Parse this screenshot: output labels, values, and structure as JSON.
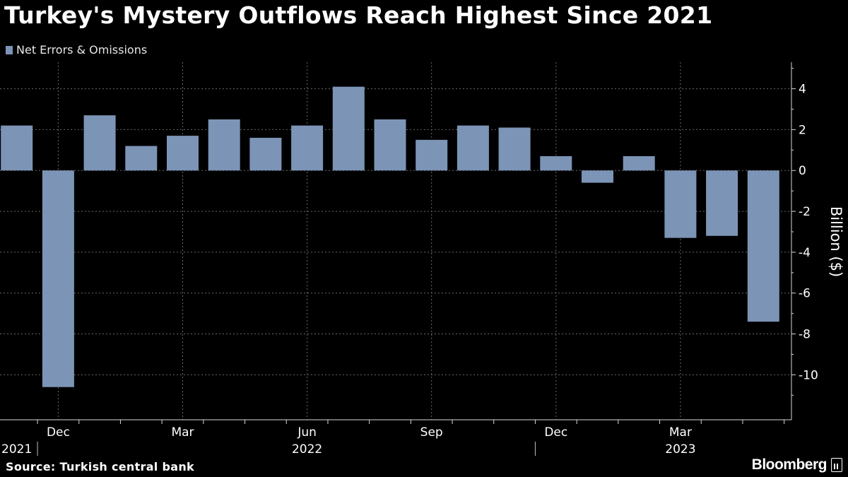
{
  "title": "Turkey's Mystery Outflows Reach Highest Since 2021",
  "legend": {
    "label": "Net Errors & Omissions",
    "swatch_color": "#7c94b6"
  },
  "footer": {
    "source": "Source: Turkish central bank",
    "brand": "Bloomberg"
  },
  "chart_data": {
    "type": "bar",
    "title": "Turkey's Mystery Outflows Reach Highest Since 2021",
    "ylabel": "Billion ($)",
    "xlabel": "",
    "ylim": [
      -12.2,
      5.3
    ],
    "yticks": [
      4,
      2,
      0,
      -2,
      -4,
      -6,
      -8,
      -10
    ],
    "y_axis_side": "right",
    "grid": true,
    "legend_position": "top-left",
    "bar_color": "#7c94b6",
    "series": [
      {
        "name": "Net Errors & Omissions",
        "categories": [
          "Nov 2021",
          "Dec 2021",
          "Jan 2022",
          "Feb 2022",
          "Mar 2022",
          "Apr 2022",
          "May 2022",
          "Jun 2022",
          "Jul 2022",
          "Aug 2022",
          "Sep 2022",
          "Oct 2022",
          "Nov 2022",
          "Dec 2022",
          "Jan 2023",
          "Feb 2023",
          "Mar 2023",
          "Apr 2023",
          "May 2023"
        ],
        "values": [
          2.2,
          -10.6,
          2.7,
          1.2,
          1.7,
          2.5,
          1.6,
          2.2,
          4.1,
          2.5,
          1.5,
          2.2,
          2.1,
          0.7,
          -0.6,
          0.7,
          -3.3,
          -3.2,
          -7.4
        ]
      }
    ],
    "x_month_labels": [
      {
        "label": "Dec",
        "index": 1
      },
      {
        "label": "Mar",
        "index": 4
      },
      {
        "label": "Jun",
        "index": 7
      },
      {
        "label": "Sep",
        "index": 10
      },
      {
        "label": "Dec",
        "index": 13
      },
      {
        "label": "Mar",
        "index": 16
      }
    ],
    "x_year_labels": [
      {
        "label": "2021",
        "index": 0
      },
      {
        "label": "2022",
        "index": 7
      },
      {
        "label": "2023",
        "index": 16
      }
    ]
  }
}
